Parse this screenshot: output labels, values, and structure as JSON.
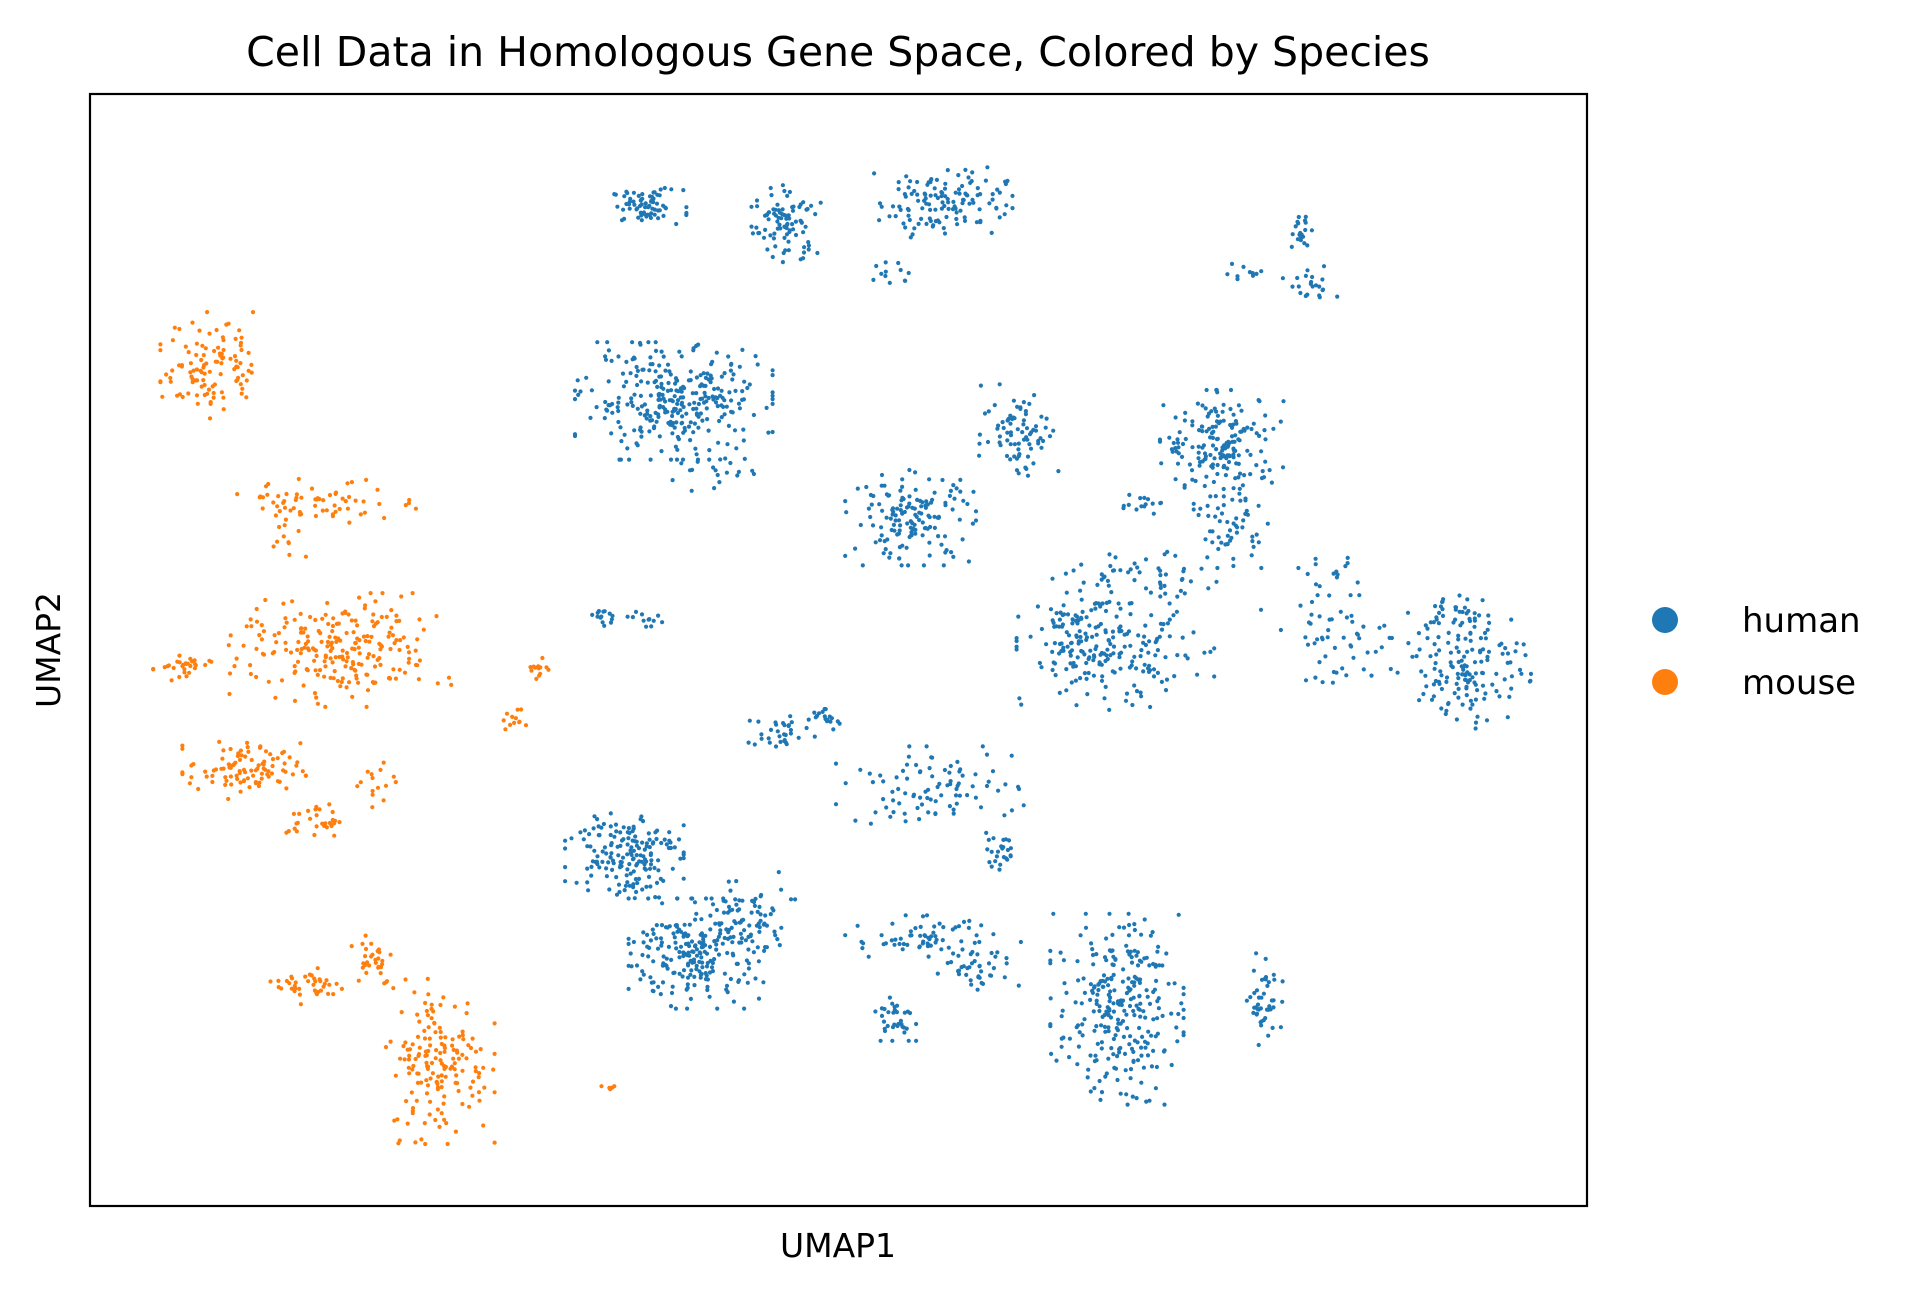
{
  "chart_data": {
    "type": "scatter",
    "title": "Cell Data in Homologous Gene Space, Colored by Species",
    "xlabel": "UMAP1",
    "ylabel": "UMAP2",
    "xlim": [
      0,
      100
    ],
    "ylim": [
      0,
      100
    ],
    "grid": false,
    "ticks": false,
    "legend_position": "right",
    "series": [
      {
        "name": "human",
        "color": "#1f77b4",
        "clusters": [
          {
            "x": 37.2,
            "y": 89.9,
            "n": 70,
            "sx": 1.6,
            "sy": 1.0
          },
          {
            "x": 46.5,
            "y": 88.3,
            "n": 90,
            "sx": 1.4,
            "sy": 2.2
          },
          {
            "x": 57.0,
            "y": 90.4,
            "n": 130,
            "sx": 2.8,
            "sy": 2.0
          },
          {
            "x": 53.6,
            "y": 84.0,
            "n": 12,
            "sx": 1.0,
            "sy": 1.0
          },
          {
            "x": 80.8,
            "y": 87.6,
            "n": 20,
            "sx": 0.5,
            "sy": 0.9
          },
          {
            "x": 77.2,
            "y": 83.9,
            "n": 10,
            "sx": 1.0,
            "sy": 0.5
          },
          {
            "x": 81.5,
            "y": 82.7,
            "n": 22,
            "sx": 1.1,
            "sy": 1.1
          },
          {
            "x": 39.0,
            "y": 72.4,
            "n": 300,
            "sx": 4.0,
            "sy": 3.2
          },
          {
            "x": 41.0,
            "y": 66.3,
            "n": 25,
            "sx": 2.5,
            "sy": 1.2
          },
          {
            "x": 54.9,
            "y": 61.9,
            "n": 150,
            "sx": 2.7,
            "sy": 2.6
          },
          {
            "x": 62.2,
            "y": 69.6,
            "n": 80,
            "sx": 1.7,
            "sy": 2.6
          },
          {
            "x": 75.6,
            "y": 68.6,
            "n": 170,
            "sx": 2.5,
            "sy": 2.9
          },
          {
            "x": 76.2,
            "y": 61.5,
            "n": 60,
            "sx": 1.5,
            "sy": 2.5
          },
          {
            "x": 70.4,
            "y": 63.1,
            "n": 15,
            "sx": 1.2,
            "sy": 0.6
          },
          {
            "x": 65.8,
            "y": 52.2,
            "n": 70,
            "sx": 1.8,
            "sy": 3.0
          },
          {
            "x": 68.5,
            "y": 49.4,
            "n": 160,
            "sx": 4.0,
            "sy": 2.9
          },
          {
            "x": 70.3,
            "y": 56.0,
            "n": 50,
            "sx": 3.0,
            "sy": 2.2
          },
          {
            "x": 84.0,
            "y": 50.8,
            "n": 60,
            "sx": 3.5,
            "sy": 2.5
          },
          {
            "x": 92.3,
            "y": 48.7,
            "n": 140,
            "sx": 2.4,
            "sy": 3.5
          },
          {
            "x": 91.3,
            "y": 53.3,
            "n": 30,
            "sx": 2.2,
            "sy": 1.0
          },
          {
            "x": 82.7,
            "y": 56.3,
            "n": 15,
            "sx": 1.2,
            "sy": 1.2
          },
          {
            "x": 34.5,
            "y": 53.0,
            "n": 14,
            "sx": 0.6,
            "sy": 0.5
          },
          {
            "x": 37.3,
            "y": 52.6,
            "n": 12,
            "sx": 1.0,
            "sy": 0.5
          },
          {
            "x": 45.9,
            "y": 42.4,
            "n": 30,
            "sx": 1.3,
            "sy": 1.0
          },
          {
            "x": 49.1,
            "y": 43.7,
            "n": 20,
            "sx": 1.1,
            "sy": 0.9
          },
          {
            "x": 56.1,
            "y": 37.7,
            "n": 90,
            "sx": 3.8,
            "sy": 2.2
          },
          {
            "x": 60.7,
            "y": 31.9,
            "n": 25,
            "sx": 1.0,
            "sy": 1.0
          },
          {
            "x": 35.7,
            "y": 31.8,
            "n": 170,
            "sx": 2.4,
            "sy": 2.7
          },
          {
            "x": 40.6,
            "y": 22.7,
            "n": 230,
            "sx": 2.8,
            "sy": 3.0
          },
          {
            "x": 43.8,
            "y": 25.9,
            "n": 60,
            "sx": 2.0,
            "sy": 2.5
          },
          {
            "x": 55.4,
            "y": 24.0,
            "n": 65,
            "sx": 3.0,
            "sy": 1.3
          },
          {
            "x": 59.6,
            "y": 21.6,
            "n": 40,
            "sx": 1.8,
            "sy": 1.3
          },
          {
            "x": 53.7,
            "y": 17.0,
            "n": 35,
            "sx": 0.9,
            "sy": 1.3
          },
          {
            "x": 68.6,
            "y": 17.7,
            "n": 280,
            "sx": 2.7,
            "sy": 5.2
          },
          {
            "x": 78.6,
            "y": 18.6,
            "n": 45,
            "sx": 0.8,
            "sy": 2.5
          }
        ]
      },
      {
        "name": "mouse",
        "color": "#ff7f0e",
        "clusters": [
          {
            "x": 8.0,
            "y": 75.6,
            "n": 110,
            "sx": 2.0,
            "sy": 2.9
          },
          {
            "x": 16.1,
            "y": 63.4,
            "n": 60,
            "sx": 3.8,
            "sy": 1.2
          },
          {
            "x": 13.1,
            "y": 61.0,
            "n": 15,
            "sx": 0.8,
            "sy": 2.0
          },
          {
            "x": 16.7,
            "y": 50.0,
            "n": 230,
            "sx": 4.5,
            "sy": 3.1
          },
          {
            "x": 6.2,
            "y": 48.3,
            "n": 30,
            "sx": 1.2,
            "sy": 0.8
          },
          {
            "x": 29.8,
            "y": 48.4,
            "n": 14,
            "sx": 0.5,
            "sy": 0.9
          },
          {
            "x": 28.3,
            "y": 43.7,
            "n": 12,
            "sx": 0.5,
            "sy": 0.6
          },
          {
            "x": 10.3,
            "y": 39.2,
            "n": 100,
            "sx": 2.5,
            "sy": 1.6
          },
          {
            "x": 15.1,
            "y": 34.7,
            "n": 30,
            "sx": 1.2,
            "sy": 1.0
          },
          {
            "x": 19.1,
            "y": 38.5,
            "n": 15,
            "sx": 0.9,
            "sy": 1.6
          },
          {
            "x": 14.7,
            "y": 19.8,
            "n": 40,
            "sx": 1.6,
            "sy": 1.0
          },
          {
            "x": 18.8,
            "y": 22.3,
            "n": 30,
            "sx": 1.0,
            "sy": 1.6
          },
          {
            "x": 23.4,
            "y": 13.0,
            "n": 170,
            "sx": 2.2,
            "sy": 4.5
          },
          {
            "x": 34.6,
            "y": 10.7,
            "n": 5,
            "sx": 0.4,
            "sy": 0.2
          }
        ]
      }
    ]
  }
}
